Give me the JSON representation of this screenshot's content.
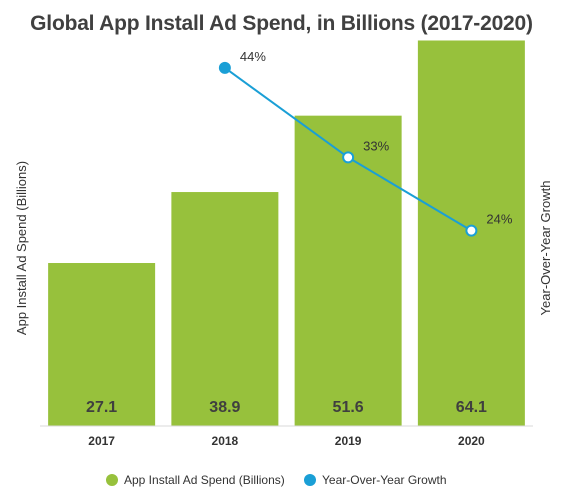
{
  "chart_data": {
    "type": "bar",
    "title": "Global App Install Ad Spend, in Billions (2017-2020)",
    "categories": [
      "2017",
      "2018",
      "2019",
      "2020"
    ],
    "ylabel_left": "App Install Ad Spend (Billions)",
    "ylabel_right": "Year-Over-Year Growth",
    "ylim": [
      0,
      70
    ],
    "y2lim": [
      0,
      50
    ],
    "grid": false,
    "legend_position": "bottom",
    "series": [
      {
        "name": "App Install Ad Spend (Billions)",
        "type": "bar",
        "axis": "left",
        "color": "#97c13c",
        "values": [
          27.1,
          38.9,
          51.6,
          64.1
        ],
        "labels": [
          "27.1",
          "38.9",
          "51.6",
          "64.1"
        ]
      },
      {
        "name": "Year-Over-Year Growth",
        "type": "line",
        "axis": "right",
        "color": "#1a9fd6",
        "x": [
          "2018",
          "2019",
          "2020"
        ],
        "values": [
          44,
          33,
          24
        ],
        "labels": [
          "44%",
          "33%",
          "24%"
        ]
      }
    ]
  }
}
